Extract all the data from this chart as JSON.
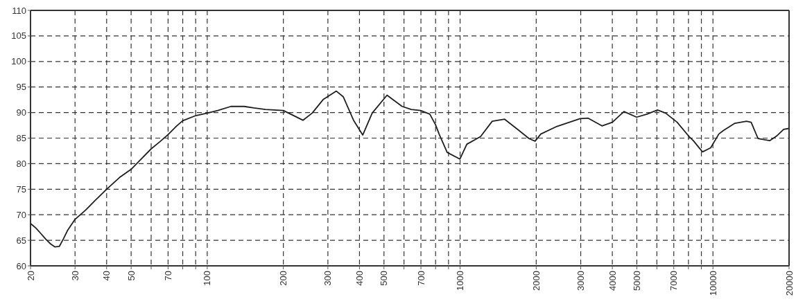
{
  "chart_data": {
    "type": "line",
    "x": [
      20,
      21,
      22,
      23,
      24,
      25,
      26,
      27,
      28,
      30,
      33,
      36,
      40,
      45,
      50,
      55,
      60,
      65,
      70,
      75,
      80,
      90,
      100,
      110,
      124,
      140,
      153,
      170,
      200,
      239,
      260,
      288,
      324,
      345,
      379,
      412,
      449,
      514,
      590,
      641,
      698,
      759,
      800,
      826,
      889,
      998,
      1063,
      1205,
      1340,
      1500,
      1690,
      1875,
      1980,
      2085,
      2416,
      2983,
      3210,
      3640,
      4000,
      4446,
      4990,
      5484,
      6034,
      6499,
      7219,
      8014,
      8360,
      9093,
      9795,
      10548,
      11000,
      12210,
      13580,
      14160,
      15080,
      16760,
      17850,
      19030,
      20000
    ],
    "series": [
      {
        "color": "#1e1e1e",
        "values": [
          68.3,
          67.4,
          66.3,
          65.2,
          64.3,
          63.7,
          63.8,
          65.3,
          66.9,
          69.1,
          70.9,
          72.8,
          75.0,
          77.3,
          78.9,
          81.0,
          82.9,
          84.3,
          85.7,
          87.2,
          88.4,
          89.4,
          89.9,
          90.4,
          91.2,
          91.2,
          90.9,
          90.6,
          90.4,
          88.5,
          89.9,
          92.6,
          94.2,
          93.1,
          88.5,
          85.6,
          89.9,
          93.4,
          91.2,
          90.6,
          90.4,
          89.7,
          87.6,
          85.8,
          82.2,
          80.9,
          83.8,
          85.3,
          88.3,
          88.7,
          86.7,
          84.9,
          84.4,
          85.8,
          87.3,
          88.8,
          88.9,
          87.4,
          88.1,
          90.2,
          89.1,
          89.7,
          90.5,
          89.9,
          88.1,
          85.4,
          84.5,
          82.3,
          83.1,
          85.8,
          86.5,
          87.9,
          88.3,
          88.1,
          84.9,
          84.5,
          85.4,
          86.7,
          86.9
        ]
      }
    ],
    "xlim": [
      20,
      20000
    ],
    "ylim": [
      60,
      110
    ],
    "xticks": [
      20,
      30,
      40,
      50,
      {
        "value": 60,
        "label": null
      },
      70,
      {
        "value": 80,
        "label": null
      },
      {
        "value": 90,
        "label": null
      },
      100,
      200,
      300,
      400,
      500,
      {
        "value": 600,
        "label": null
      },
      700,
      {
        "value": 800,
        "label": null
      },
      {
        "value": 900,
        "label": null
      },
      1000,
      2000,
      3000,
      4000,
      5000,
      {
        "value": 6000,
        "label": null
      },
      7000,
      {
        "value": 8000,
        "label": null
      },
      {
        "value": 9000,
        "label": null
      },
      10000,
      20000
    ],
    "yticks": [
      60,
      65,
      70,
      75,
      80,
      85,
      90,
      95,
      100,
      105,
      110
    ],
    "log": "x",
    "grid": true,
    "line_style": "solid"
  }
}
